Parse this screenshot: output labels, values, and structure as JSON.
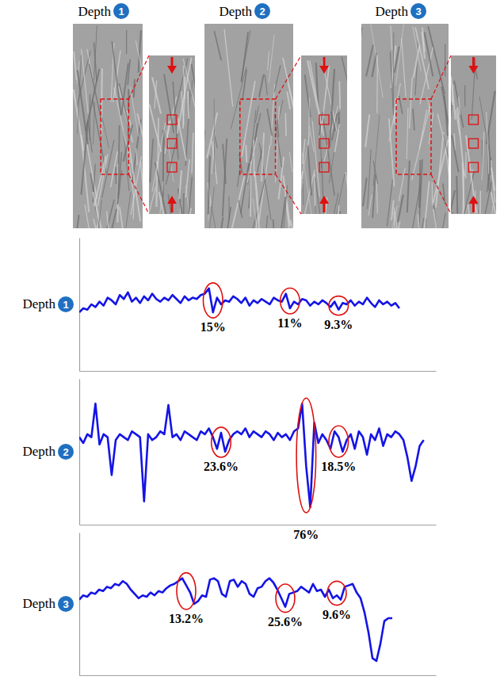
{
  "figure": {
    "images": [
      {
        "title": "Depth",
        "number": "1"
      },
      {
        "title": "Depth",
        "number": "2"
      },
      {
        "title": "Depth",
        "number": "3"
      }
    ]
  },
  "chart_data": [
    {
      "type": "line",
      "title": "Depth",
      "panel_number": "1",
      "color": "#1414e6",
      "tick_labels": false,
      "xlim": [
        0,
        88
      ],
      "ylim": [
        0,
        100
      ],
      "values": [
        44,
        47,
        46,
        50,
        48,
        52,
        49,
        55,
        53,
        50,
        57,
        54,
        59,
        52,
        55,
        51,
        56,
        53,
        58,
        54,
        52,
        55,
        53,
        57,
        54,
        51,
        56,
        53,
        55,
        54,
        57,
        58,
        62,
        44,
        55,
        50,
        53,
        52,
        56,
        54,
        51,
        55,
        49,
        53,
        51,
        54,
        52,
        50,
        55,
        53,
        52,
        58,
        47,
        52,
        50,
        54,
        53,
        49,
        52,
        50,
        53,
        51,
        48,
        52,
        46,
        51,
        50,
        53,
        49,
        52,
        50,
        55,
        51,
        48,
        53,
        50,
        52,
        49,
        51,
        47
      ],
      "annotations": [
        {
          "x": 33,
          "label": "15%"
        },
        {
          "x": 52,
          "label": "11%"
        },
        {
          "x": 64,
          "label": "9.3%"
        }
      ]
    },
    {
      "type": "line",
      "title": "Depth",
      "panel_number": "2",
      "color": "#1414e6",
      "tick_labels": false,
      "xlim": [
        0,
        88
      ],
      "ylim": [
        0,
        100
      ],
      "values": [
        60,
        56,
        62,
        60,
        83,
        55,
        62,
        60,
        34,
        58,
        62,
        60,
        58,
        64,
        62,
        60,
        16,
        62,
        58,
        60,
        64,
        62,
        82,
        60,
        62,
        58,
        64,
        62,
        60,
        58,
        64,
        62,
        66,
        60,
        52,
        63,
        50,
        58,
        62,
        64,
        62,
        66,
        60,
        64,
        62,
        60,
        64,
        62,
        58,
        63,
        60,
        62,
        58,
        64,
        66,
        83,
        40,
        12,
        70,
        56,
        62,
        58,
        52,
        64,
        60,
        50,
        58,
        62,
        52,
        64,
        60,
        48,
        62,
        58,
        66,
        54,
        62,
        60,
        64,
        62,
        58,
        46,
        30,
        40,
        54,
        58
      ],
      "annotations": [
        {
          "x": 35,
          "label": "23.6%"
        },
        {
          "x": 56,
          "label": "76%"
        },
        {
          "x": 64,
          "label": "18.5%"
        }
      ]
    },
    {
      "type": "line",
      "title": "Depth",
      "panel_number": "3",
      "color": "#1414e6",
      "tick_labels": false,
      "xlim": [
        0,
        90
      ],
      "ylim": [
        0,
        100
      ],
      "values": [
        53,
        56,
        55,
        58,
        57,
        60,
        59,
        62,
        61,
        64,
        63,
        66,
        64,
        60,
        57,
        54,
        56,
        55,
        58,
        56,
        59,
        58,
        61,
        63,
        64,
        66,
        68,
        63,
        58,
        50,
        52,
        56,
        55,
        67,
        68,
        66,
        57,
        55,
        66,
        67,
        62,
        66,
        64,
        57,
        55,
        61,
        62,
        66,
        68,
        65,
        60,
        54,
        48,
        57,
        58,
        59,
        62,
        60,
        58,
        64,
        59,
        60,
        55,
        60,
        54,
        56,
        53,
        62,
        63,
        64,
        58,
        54,
        44,
        30,
        12,
        10,
        22,
        38,
        40,
        40
      ],
      "annotations": [
        {
          "x": 27,
          "label": "13.2%"
        },
        {
          "x": 52,
          "label": "25.6%"
        },
        {
          "x": 65,
          "label": "9.6%"
        }
      ]
    }
  ]
}
